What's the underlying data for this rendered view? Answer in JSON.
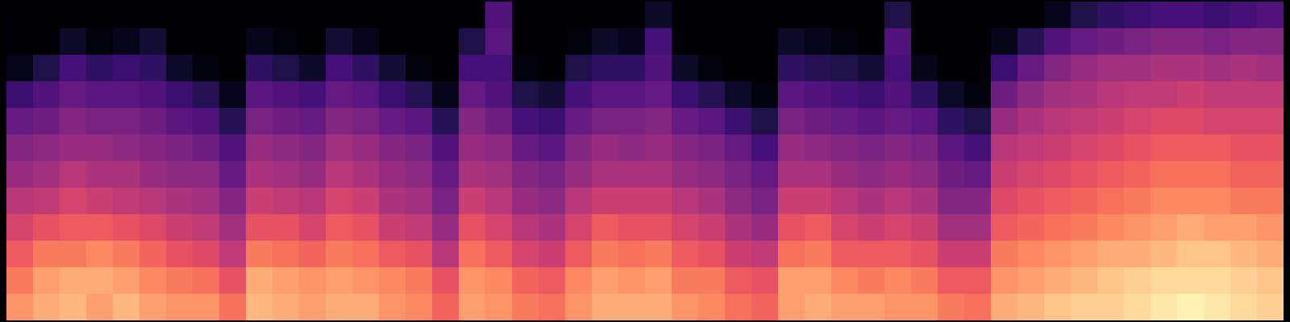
{
  "chart_data": {
    "type": "heatmap",
    "color": "magma",
    "color_domain": [
      -80,
      0
    ],
    "tick_labels": false,
    "values": [
      [
        -80,
        -80,
        -76,
        -64,
        -56,
        -50,
        -46,
        -40,
        -34,
        -28,
        -22,
        -18
      ],
      [
        -80,
        -80,
        -70,
        -60,
        -54,
        -48,
        -44,
        -38,
        -30,
        -22,
        -16,
        -14
      ],
      [
        -80,
        -74,
        -62,
        -56,
        -50,
        -46,
        -40,
        -34,
        -28,
        -22,
        -14,
        -12
      ],
      [
        -80,
        -78,
        -66,
        -58,
        -52,
        -46,
        -42,
        -36,
        -28,
        -20,
        -14,
        -16
      ],
      [
        -80,
        -76,
        -64,
        -58,
        -52,
        -48,
        -42,
        -38,
        -30,
        -22,
        -16,
        -12
      ],
      [
        -80,
        -72,
        -66,
        -60,
        -54,
        -50,
        -46,
        -40,
        -32,
        -26,
        -20,
        -16
      ],
      [
        -80,
        -80,
        -74,
        -64,
        -58,
        -52,
        -48,
        -42,
        -36,
        -30,
        -22,
        -18
      ],
      [
        -80,
        -80,
        -78,
        -68,
        -60,
        -54,
        -48,
        -44,
        -38,
        -32,
        -24,
        -18
      ],
      [
        -80,
        -80,
        -80,
        -76,
        -68,
        -60,
        -56,
        -50,
        -44,
        -38,
        -30,
        -24
      ],
      [
        -80,
        -76,
        -66,
        -58,
        -52,
        -46,
        -42,
        -36,
        -30,
        -22,
        -14,
        -12
      ],
      [
        -80,
        -78,
        -70,
        -60,
        -54,
        -48,
        -44,
        -38,
        -30,
        -24,
        -16,
        -14
      ],
      [
        -80,
        -80,
        -74,
        -62,
        -56,
        -50,
        -46,
        -40,
        -34,
        -26,
        -18,
        -16
      ],
      [
        -80,
        -72,
        -62,
        -56,
        -50,
        -44,
        -40,
        -34,
        -28,
        -22,
        -16,
        -14
      ],
      [
        -80,
        -76,
        -66,
        -58,
        -52,
        -46,
        -42,
        -36,
        -30,
        -24,
        -18,
        -14
      ],
      [
        -80,
        -80,
        -72,
        -64,
        -56,
        -50,
        -46,
        -42,
        -36,
        -28,
        -20,
        -18
      ],
      [
        -80,
        -80,
        -78,
        -68,
        -58,
        -52,
        -48,
        -44,
        -38,
        -30,
        -22,
        -20
      ],
      [
        -80,
        -80,
        -80,
        -76,
        -68,
        -60,
        -56,
        -52,
        -46,
        -40,
        -30,
        -26
      ],
      [
        -80,
        -70,
        -62,
        -56,
        -50,
        -46,
        -42,
        -36,
        -30,
        -24,
        -18,
        -16
      ],
      [
        -60,
        -58,
        -62,
        -60,
        -54,
        -48,
        -44,
        -40,
        -34,
        -28,
        -20,
        -18
      ],
      [
        -80,
        -80,
        -78,
        -70,
        -62,
        -56,
        -50,
        -46,
        -40,
        -34,
        -26,
        -22
      ],
      [
        -80,
        -80,
        -80,
        -72,
        -64,
        -58,
        -52,
        -48,
        -42,
        -36,
        -28,
        -24
      ],
      [
        -80,
        -78,
        -70,
        -62,
        -56,
        -50,
        -46,
        -40,
        -34,
        -28,
        -20,
        -18
      ],
      [
        -80,
        -74,
        -66,
        -58,
        -52,
        -46,
        -42,
        -36,
        -28,
        -22,
        -16,
        -14
      ],
      [
        -80,
        -76,
        -66,
        -58,
        -52,
        -48,
        -42,
        -36,
        -30,
        -24,
        -18,
        -14
      ],
      [
        -74,
        -62,
        -60,
        -56,
        -50,
        -46,
        -42,
        -36,
        -30,
        -22,
        -16,
        -14
      ],
      [
        -80,
        -80,
        -74,
        -64,
        -56,
        -50,
        -46,
        -40,
        -34,
        -28,
        -22,
        -18
      ],
      [
        -80,
        -80,
        -78,
        -68,
        -58,
        -52,
        -48,
        -42,
        -36,
        -30,
        -22,
        -20
      ],
      [
        -80,
        -80,
        -80,
        -74,
        -64,
        -56,
        -52,
        -48,
        -42,
        -36,
        -28,
        -24
      ],
      [
        -80,
        -80,
        -80,
        -78,
        -70,
        -62,
        -56,
        -52,
        -46,
        -38,
        -30,
        -26
      ],
      [
        -80,
        -74,
        -66,
        -58,
        -52,
        -46,
        -42,
        -36,
        -30,
        -24,
        -16,
        -16
      ],
      [
        -80,
        -76,
        -68,
        -60,
        -54,
        -48,
        -42,
        -36,
        -28,
        -22,
        -16,
        -14
      ],
      [
        -80,
        -78,
        -70,
        -62,
        -56,
        -50,
        -46,
        -40,
        -34,
        -28,
        -20,
        -16
      ],
      [
        -80,
        -80,
        -72,
        -64,
        -58,
        -52,
        -48,
        -42,
        -36,
        -28,
        -22,
        -16
      ],
      [
        -70,
        -60,
        -62,
        -60,
        -56,
        -50,
        -46,
        -40,
        -34,
        -28,
        -20,
        -18
      ],
      [
        -80,
        -80,
        -76,
        -66,
        -58,
        -52,
        -48,
        -42,
        -36,
        -30,
        -22,
        -18
      ],
      [
        -80,
        -80,
        -80,
        -74,
        -66,
        -58,
        -54,
        -50,
        -44,
        -36,
        -28,
        -22
      ],
      [
        -80,
        -80,
        -80,
        -78,
        -70,
        -62,
        -56,
        -50,
        -44,
        -36,
        -28,
        -24
      ],
      [
        -80,
        -76,
        -64,
        -54,
        -46,
        -40,
        -36,
        -32,
        -28,
        -22,
        -18,
        -14
      ],
      [
        -80,
        -68,
        -56,
        -48,
        -42,
        -38,
        -34,
        -30,
        -26,
        -20,
        -16,
        -12
      ],
      [
        -76,
        -60,
        -50,
        -44,
        -40,
        -36,
        -32,
        -28,
        -24,
        -18,
        -14,
        -10
      ],
      [
        -70,
        -56,
        -46,
        -42,
        -38,
        -34,
        -30,
        -26,
        -22,
        -16,
        -12,
        -8
      ],
      [
        -66,
        -54,
        -44,
        -40,
        -36,
        -32,
        -28,
        -24,
        -20,
        -14,
        -10,
        -8
      ],
      [
        -64,
        -52,
        -44,
        -38,
        -34,
        -30,
        -26,
        -22,
        -18,
        -14,
        -8,
        -6
      ],
      [
        -62,
        -50,
        -42,
        -38,
        -32,
        -28,
        -24,
        -20,
        -16,
        -12,
        -6,
        -4
      ],
      [
        -62,
        -50,
        -42,
        -36,
        -32,
        -28,
        -24,
        -20,
        -14,
        -10,
        -6,
        -2
      ],
      [
        -64,
        -52,
        -44,
        -38,
        -34,
        -28,
        -24,
        -20,
        -16,
        -10,
        -6,
        -4
      ],
      [
        -62,
        -50,
        -42,
        -38,
        -34,
        -30,
        -26,
        -22,
        -16,
        -12,
        -8,
        -6
      ],
      [
        -60,
        -50,
        -44,
        -38,
        -34,
        -30,
        -26,
        -22,
        -18,
        -14,
        -10,
        -8
      ]
    ]
  }
}
